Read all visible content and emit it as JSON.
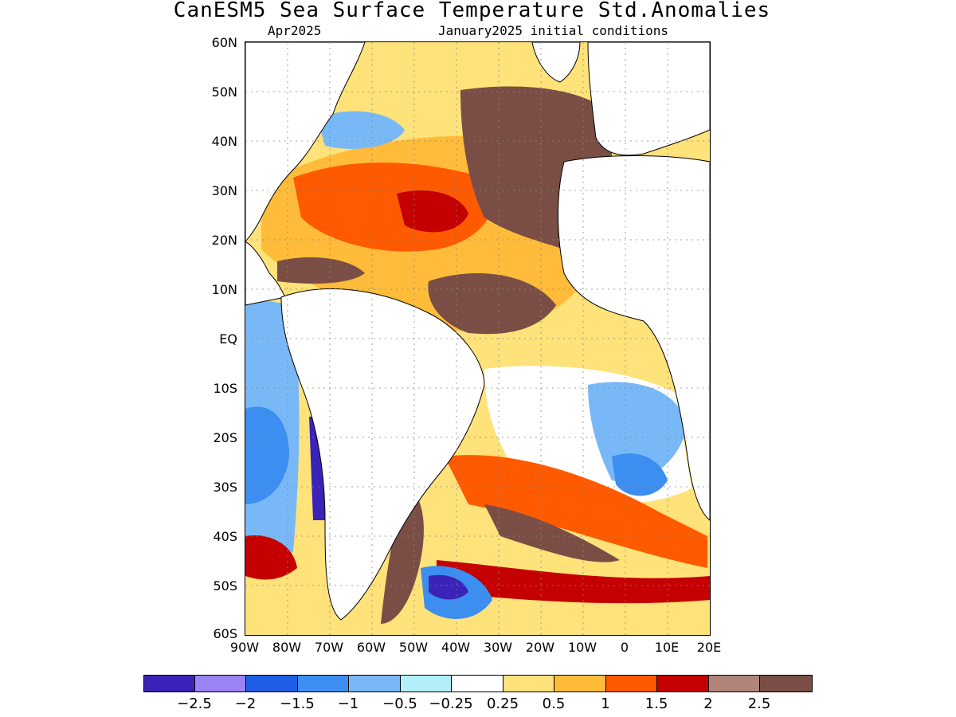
{
  "title": "CanESM5 Sea Surface Temperature Std.Anomalies",
  "subtitle_left": "Apr2025",
  "subtitle_right": "January2025 initial conditions",
  "latitude_labels": [
    "60N",
    "50N",
    "40N",
    "30N",
    "20N",
    "10N",
    "EQ",
    "10S",
    "20S",
    "30S",
    "40S",
    "50S",
    "60S"
  ],
  "longitude_labels": [
    "90W",
    "80W",
    "70W",
    "60W",
    "50W",
    "40W",
    "30W",
    "20W",
    "10W",
    "0",
    "10E",
    "20E"
  ],
  "colorbar": {
    "colors": [
      "#3a23b8",
      "#9b82f5",
      "#1f5fe6",
      "#3c8ef0",
      "#78b8f6",
      "#b2eff8",
      "#ffffff",
      "#ffe27a",
      "#ffbb3a",
      "#ff5a00",
      "#c40000",
      "#b08478",
      "#7a4e44"
    ],
    "labels": [
      "-2.5",
      "-2",
      "-1.5",
      "-1",
      "-0.5",
      "-0.25",
      "0.25",
      "0.5",
      "1",
      "1.5",
      "2",
      "2.5"
    ]
  },
  "map": {
    "palette": {
      "land": "#ffffff",
      "coast": "#000000",
      "strong_neg": "#3a23b8",
      "neg": "#3c8ef0",
      "weak_neg": "#b2eff8",
      "weak_pos": "#ffe27a",
      "pos": "#ffbb3a",
      "mod_pos": "#ff5a00",
      "high_pos": "#c40000",
      "very_high": "#b08478",
      "extreme": "#7a4e44"
    }
  }
}
